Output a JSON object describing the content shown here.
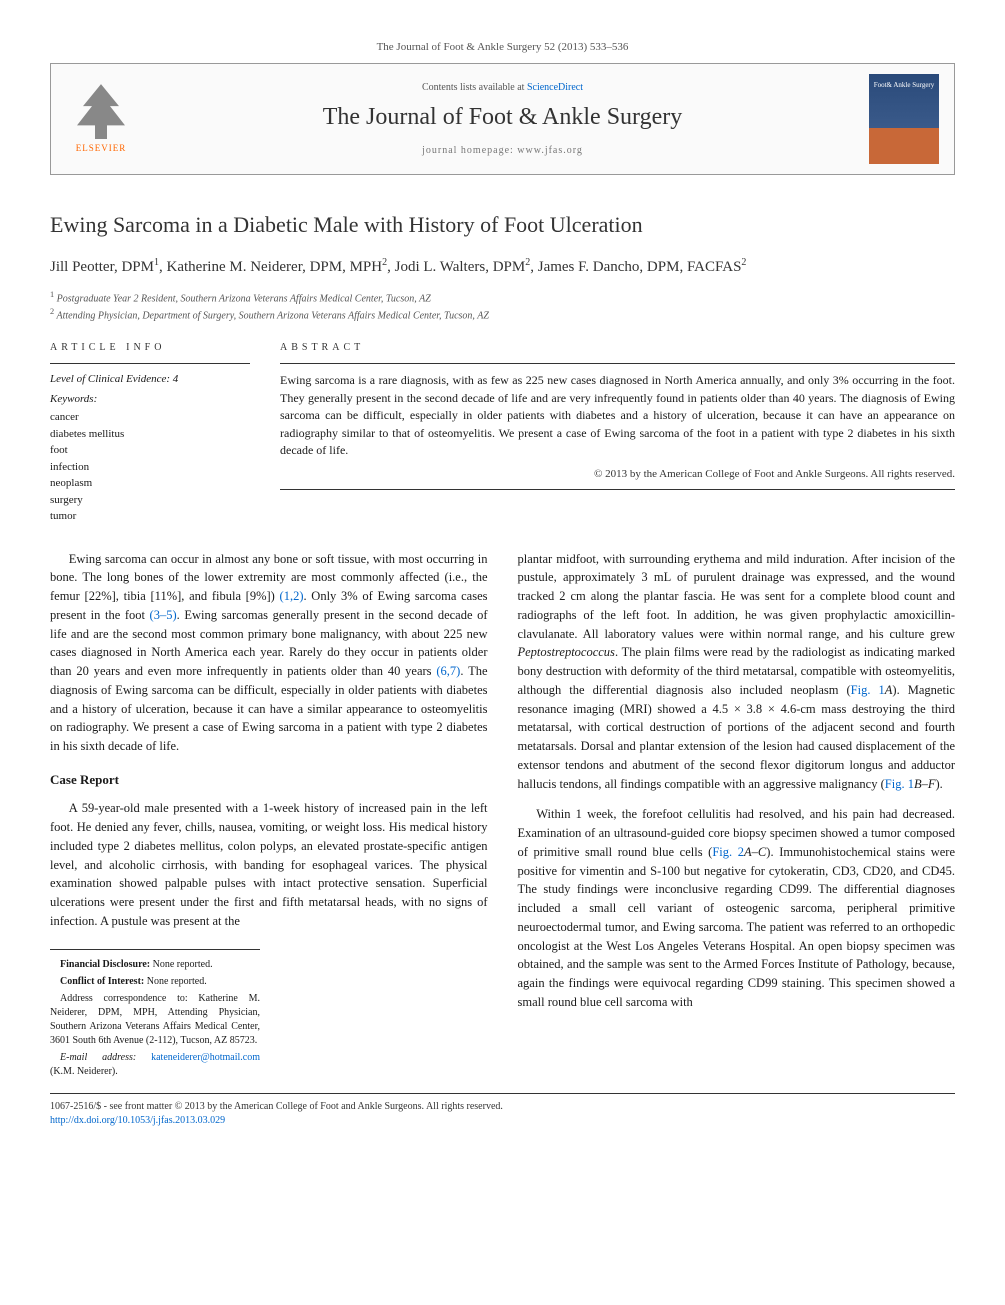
{
  "journal_ref": "The Journal of Foot & Ankle Surgery 52 (2013) 533–536",
  "header": {
    "contents_prefix": "Contents lists available at ",
    "contents_link": "ScienceDirect",
    "journal_title": "The Journal of Foot & Ankle Surgery",
    "homepage_prefix": "journal homepage: ",
    "homepage_url": "www.jfas.org",
    "elsevier_label": "ELSEVIER",
    "cover_text": "Foot& Ankle Surgery"
  },
  "article": {
    "title": "Ewing Sarcoma in a Diabetic Male with History of Foot Ulceration",
    "authors_html": "Jill Peotter, DPM<sup>1</sup>, Katherine M. Neiderer, DPM, MPH<sup>2</sup>, Jodi L. Walters, DPM<sup>2</sup>, James F. Dancho, DPM, FACFAS<sup>2</sup>",
    "affiliations": [
      "Postgraduate Year 2 Resident, Southern Arizona Veterans Affairs Medical Center, Tucson, AZ",
      "Attending Physician, Department of Surgery, Southern Arizona Veterans Affairs Medical Center, Tucson, AZ"
    ]
  },
  "info": {
    "label": "ARTICLE INFO",
    "evidence": "Level of Clinical Evidence: 4",
    "keywords_label": "Keywords:",
    "keywords": [
      "cancer",
      "diabetes mellitus",
      "foot",
      "infection",
      "neoplasm",
      "surgery",
      "tumor"
    ]
  },
  "abstract": {
    "label": "ABSTRACT",
    "text": "Ewing sarcoma is a rare diagnosis, with as few as 225 new cases diagnosed in North America annually, and only 3% occurring in the foot. They generally present in the second decade of life and are very infrequently found in patients older than 40 years. The diagnosis of Ewing sarcoma can be difficult, especially in older patients with diabetes and a history of ulceration, because it can have an appearance on radiography similar to that of osteomyelitis. We present a case of Ewing sarcoma of the foot in a patient with type 2 diabetes in his sixth decade of life.",
    "copyright": "© 2013 by the American College of Foot and Ankle Surgeons. All rights reserved."
  },
  "body": {
    "intro": "Ewing sarcoma can occur in almost any bone or soft tissue, with most occurring in bone. The long bones of the lower extremity are most commonly affected (i.e., the femur [22%], tibia [11%], and fibula [9%]) (1,2). Only 3% of Ewing sarcoma cases present in the foot (3–5). Ewing sarcomas generally present in the second decade of life and are the second most common primary bone malignancy, with about 225 new cases diagnosed in North America each year. Rarely do they occur in patients older than 20 years and even more infrequently in patients older than 40 years (6,7). The diagnosis of Ewing sarcoma can be difficult, especially in older patients with diabetes and a history of ulceration, because it can have a similar appearance to osteomyelitis on radiography. We present a case of Ewing sarcoma in a patient with type 2 diabetes in his sixth decade of life.",
    "case_heading": "Case Report",
    "case_p1": "A 59-year-old male presented with a 1-week history of increased pain in the left foot. He denied any fever, chills, nausea, vomiting, or weight loss. His medical history included type 2 diabetes mellitus, colon polyps, an elevated prostate-specific antigen level, and alcoholic cirrhosis, with banding for esophageal varices. The physical examination showed palpable pulses with intact protective sensation. Superficial ulcerations were present under the first and fifth metatarsal heads, with no signs of infection. A pustule was present at the",
    "case_p2": "plantar midfoot, with surrounding erythema and mild induration. After incision of the pustule, approximately 3 mL of purulent drainage was expressed, and the wound tracked 2 cm along the plantar fascia. He was sent for a complete blood count and radiographs of the left foot. In addition, he was given prophylactic amoxicillin-clavulanate. All laboratory values were within normal range, and his culture grew Peptostreptococcus. The plain films were read by the radiologist as indicating marked bony destruction with deformity of the third metatarsal, compatible with osteomyelitis, although the differential diagnosis also included neoplasm (Fig. 1A). Magnetic resonance imaging (MRI) showed a 4.5 × 3.8 × 4.6-cm mass destroying the third metatarsal, with cortical destruction of portions of the adjacent second and fourth metatarsals. Dorsal and plantar extension of the lesion had caused displacement of the extensor tendons and abutment of the second flexor digitorum longus and adductor hallucis tendons, all findings compatible with an aggressive malignancy (Fig. 1B–F).",
    "case_p3": "Within 1 week, the forefoot cellulitis had resolved, and his pain had decreased. Examination of an ultrasound-guided core biopsy specimen showed a tumor composed of primitive small round blue cells (Fig. 2A–C). Immunohistochemical stains were positive for vimentin and S-100 but negative for cytokeratin, CD3, CD20, and CD45. The study findings were inconclusive regarding CD99. The differential diagnoses included a small cell variant of osteogenic sarcoma, peripheral primitive neuroectodermal tumor, and Ewing sarcoma. The patient was referred to an orthopedic oncologist at the West Los Angeles Veterans Hospital. An open biopsy specimen was obtained, and the sample was sent to the Armed Forces Institute of Pathology, because, again the findings were equivocal regarding CD99 staining. This specimen showed a small round blue cell sarcoma with"
  },
  "footnotes": {
    "financial": "Financial Disclosure: None reported.",
    "conflict": "Conflict of Interest: None reported.",
    "correspondence": "Address correspondence to: Katherine M. Neiderer, DPM, MPH, Attending Physician, Southern Arizona Veterans Affairs Medical Center, 3601 South 6th Avenue (2-112), Tucson, AZ 85723.",
    "email_label": "E-mail address: ",
    "email": "kateneiderer@hotmail.com",
    "email_suffix": " (K.M. Neiderer)."
  },
  "bottom": {
    "line1": "1067-2516/$ - see front matter © 2013 by the American College of Foot and Ankle Surgeons. All rights reserved.",
    "doi": "http://dx.doi.org/10.1053/j.jfas.2013.03.029"
  },
  "colors": {
    "link": "#0066cc",
    "elsevier_orange": "#ff6600",
    "text": "#1a1a1a",
    "muted": "#555555"
  }
}
